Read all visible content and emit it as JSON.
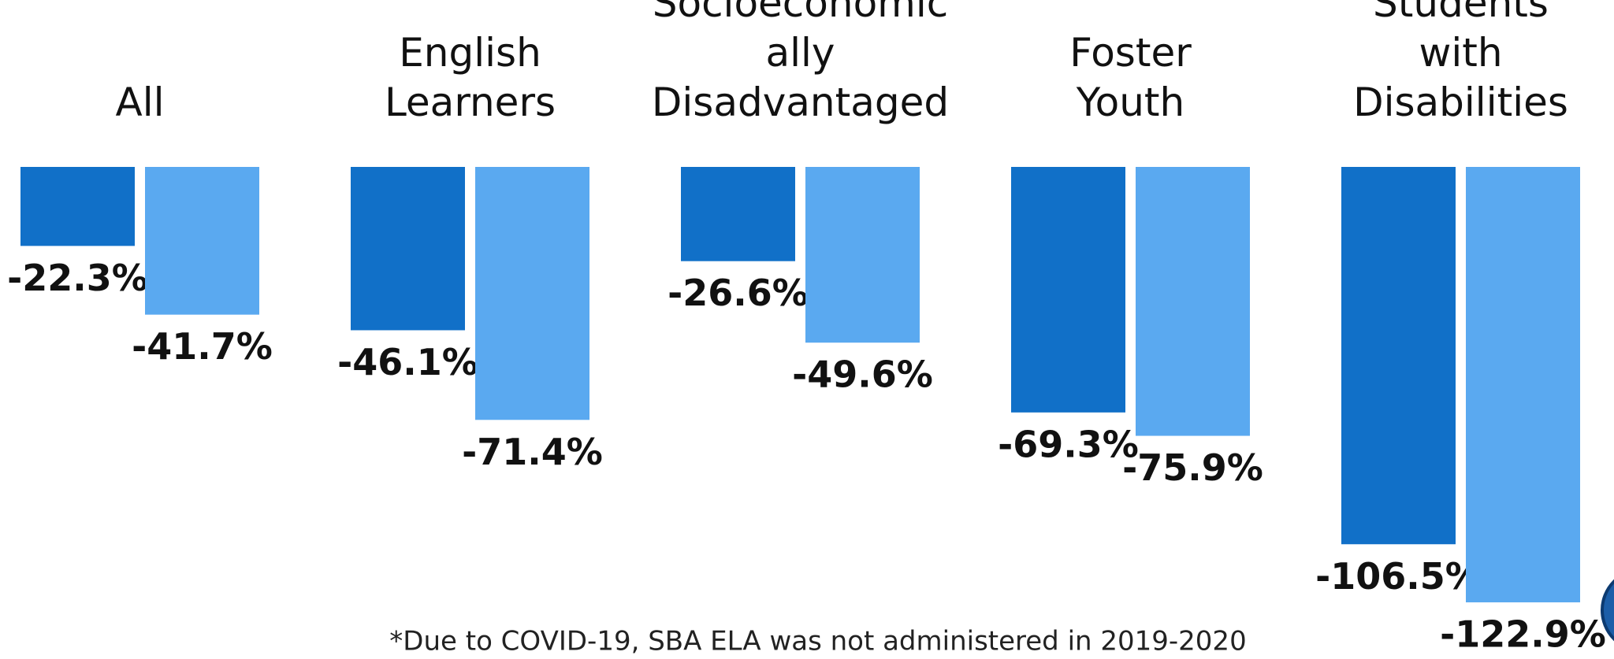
{
  "chart_data": {
    "type": "bar",
    "categories": [
      "All",
      "English\nLearners",
      "Socioeconomic\nally\nDisadvantaged",
      "Foster\nYouth",
      "Students\nwith\nDisabilities"
    ],
    "series": [
      {
        "color": "#1170c8",
        "values": [
          -22.3,
          -46.1,
          -26.6,
          -69.3,
          -106.5
        ],
        "value_labels": [
          "-22.3%",
          "-46.1%",
          "-26.6%",
          "-69.3%",
          "-106.5%"
        ]
      },
      {
        "color": "#5aa9f0",
        "values": [
          -41.7,
          -71.4,
          -49.6,
          -75.9,
          -122.9
        ],
        "value_labels": [
          "-41.7%",
          "-71.4%",
          "-49.6%",
          "-75.9%",
          "-122.9%"
        ]
      }
    ],
    "footnote": "*Due to COVID-19, SBA ELA was not administered in 2019-2020"
  }
}
